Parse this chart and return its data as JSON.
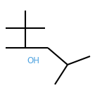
{
  "background": "#ffffff",
  "line_color": "#000000",
  "oh_color": "#4fa3e0",
  "oh_text": "OH",
  "line_width": 1.5,
  "oh_fontsize": 8.5,
  "figsize": [
    1.45,
    1.55
  ],
  "dpi": 100
}
